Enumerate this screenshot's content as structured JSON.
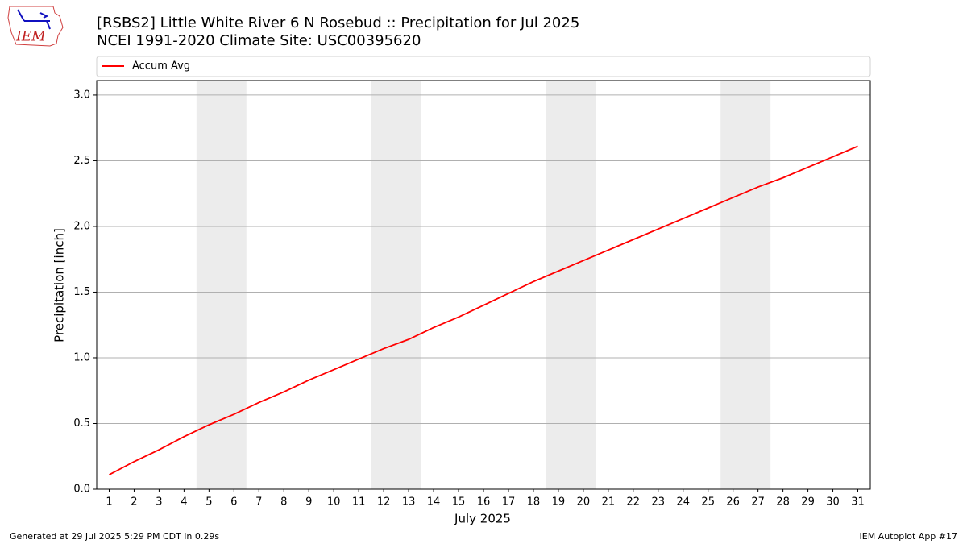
{
  "logo_text": "IEM",
  "footer": {
    "left": "Generated at 29 Jul 2025 5:29 PM CDT in 0.29s",
    "right": "IEM Autoplot App #17"
  },
  "chart_data": {
    "type": "line",
    "title": "[RSBS2] Little White River 6 N Rosebud :: Precipitation for Jul 2025",
    "subtitle": "NCEI 1991-2020 Climate Site: USC00395620",
    "x_label": "July 2025",
    "y_label": "Precipitation [inch]",
    "x": [
      1,
      2,
      3,
      4,
      5,
      6,
      7,
      8,
      9,
      10,
      11,
      12,
      13,
      14,
      15,
      16,
      17,
      18,
      19,
      20,
      21,
      22,
      23,
      24,
      25,
      26,
      27,
      28,
      29,
      30,
      31
    ],
    "series": [
      {
        "name": "Accum Avg",
        "color": "#ff0000",
        "values": [
          0.11,
          0.21,
          0.3,
          0.4,
          0.49,
          0.57,
          0.66,
          0.74,
          0.83,
          0.91,
          0.99,
          1.07,
          1.14,
          1.23,
          1.31,
          1.4,
          1.49,
          1.58,
          1.66,
          1.74,
          1.82,
          1.9,
          1.98,
          2.06,
          2.14,
          2.22,
          2.3,
          2.37,
          2.45,
          2.53,
          2.61
        ]
      }
    ],
    "shaded_spans": [
      [
        4.5,
        6.5
      ],
      [
        11.5,
        13.5
      ],
      [
        18.5,
        20.5
      ],
      [
        25.5,
        27.5
      ]
    ],
    "shade_color": "#ececec",
    "xlim": [
      0.5,
      31.5
    ],
    "xticks": [
      1,
      2,
      3,
      4,
      5,
      6,
      7,
      8,
      9,
      10,
      11,
      12,
      13,
      14,
      15,
      16,
      17,
      18,
      19,
      20,
      21,
      22,
      23,
      24,
      25,
      26,
      27,
      28,
      29,
      30,
      31
    ],
    "ylim": [
      0,
      3.11
    ],
    "yticks": [
      {
        "value": 0,
        "label": "0.0"
      },
      {
        "value": 0.5,
        "label": "0.5"
      },
      {
        "value": 1,
        "label": "1.0"
      },
      {
        "value": 1.5,
        "label": "1.5"
      },
      {
        "value": 2,
        "label": "2.0"
      },
      {
        "value": 2.5,
        "label": "2.5"
      },
      {
        "value": 3,
        "label": "3.0"
      }
    ],
    "grid": true,
    "legend": "top"
  }
}
